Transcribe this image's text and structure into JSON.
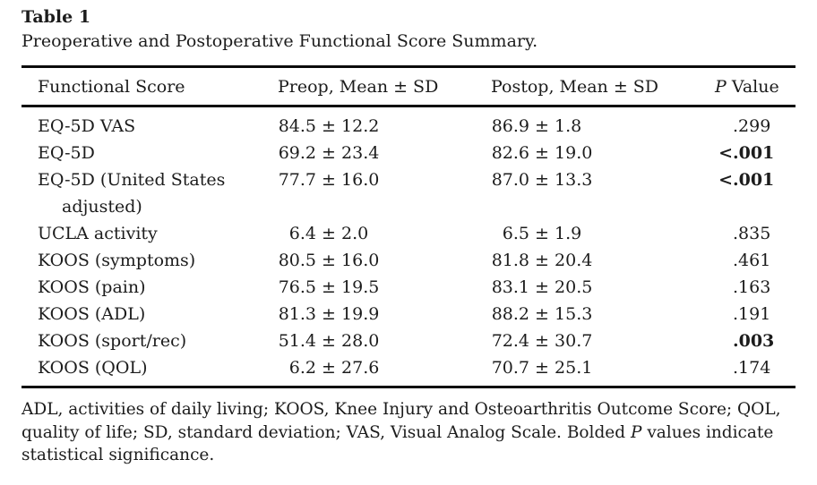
{
  "page": {
    "background_color": "#ffffff",
    "text_color": "#1c1c1c",
    "rule_color": "#0b0b0b"
  },
  "table": {
    "label": "Table 1",
    "caption": "Preoperative and Postoperative Functional Score Summary.",
    "pm": "±",
    "header": {
      "col1": "Functional Score",
      "col2": "Preop, Mean ± SD",
      "col3": "Postop, Mean ± SD",
      "col4_italic": "P",
      "col4_rest": " Value"
    },
    "rows": [
      {
        "score": "EQ-5D VAS",
        "preop_mean": "84.5",
        "preop_sd": "12.2",
        "postop_mean": "86.9",
        "postop_sd": "1.8",
        "p_prefix": "",
        "p_value": ".299",
        "p_bold": false
      },
      {
        "score": "EQ-5D",
        "preop_mean": "69.2",
        "preop_sd": "23.4",
        "postop_mean": "82.6",
        "postop_sd": "19.0",
        "p_prefix": "<",
        "p_value": ".001",
        "p_bold": true
      },
      {
        "score": "EQ-5D (United States adjusted)",
        "preop_mean": "77.7",
        "preop_sd": "16.0",
        "postop_mean": "87.0",
        "postop_sd": "13.3",
        "p_prefix": "<",
        "p_value": ".001",
        "p_bold": true
      },
      {
        "score": "UCLA activity",
        "preop_mean": "6.4",
        "preop_sd": "2.0",
        "postop_mean": "6.5",
        "postop_sd": "1.9",
        "p_prefix": "",
        "p_value": ".835",
        "p_bold": false
      },
      {
        "score": "KOOS (symptoms)",
        "preop_mean": "80.5",
        "preop_sd": "16.0",
        "postop_mean": "81.8",
        "postop_sd": "20.4",
        "p_prefix": "",
        "p_value": ".461",
        "p_bold": false
      },
      {
        "score": "KOOS (pain)",
        "preop_mean": "76.5",
        "preop_sd": "19.5",
        "postop_mean": "83.1",
        "postop_sd": "20.5",
        "p_prefix": "",
        "p_value": ".163",
        "p_bold": false
      },
      {
        "score": "KOOS (ADL)",
        "preop_mean": "81.3",
        "preop_sd": "19.9",
        "postop_mean": "88.2",
        "postop_sd": "15.3",
        "p_prefix": "",
        "p_value": ".191",
        "p_bold": false
      },
      {
        "score": "KOOS (sport/rec)",
        "preop_mean": "51.4",
        "preop_sd": "28.0",
        "postop_mean": "72.4",
        "postop_sd": "30.7",
        "p_prefix": "",
        "p_value": ".003",
        "p_bold": true
      },
      {
        "score": "KOOS (QOL)",
        "preop_mean": "6.2",
        "preop_sd": "27.6",
        "postop_mean": "70.7",
        "postop_sd": "25.1",
        "p_prefix": "",
        "p_value": ".174",
        "p_bold": false
      }
    ],
    "footnote": {
      "pre": "ADL, activities of daily living; KOOS, Knee Injury and Osteoarthritis Outcome Score; QOL, quality of life; SD, standard deviation; VAS, Visual Analog Scale. Bolded ",
      "italic": "P",
      "post": " values indicate statistical significance."
    }
  }
}
